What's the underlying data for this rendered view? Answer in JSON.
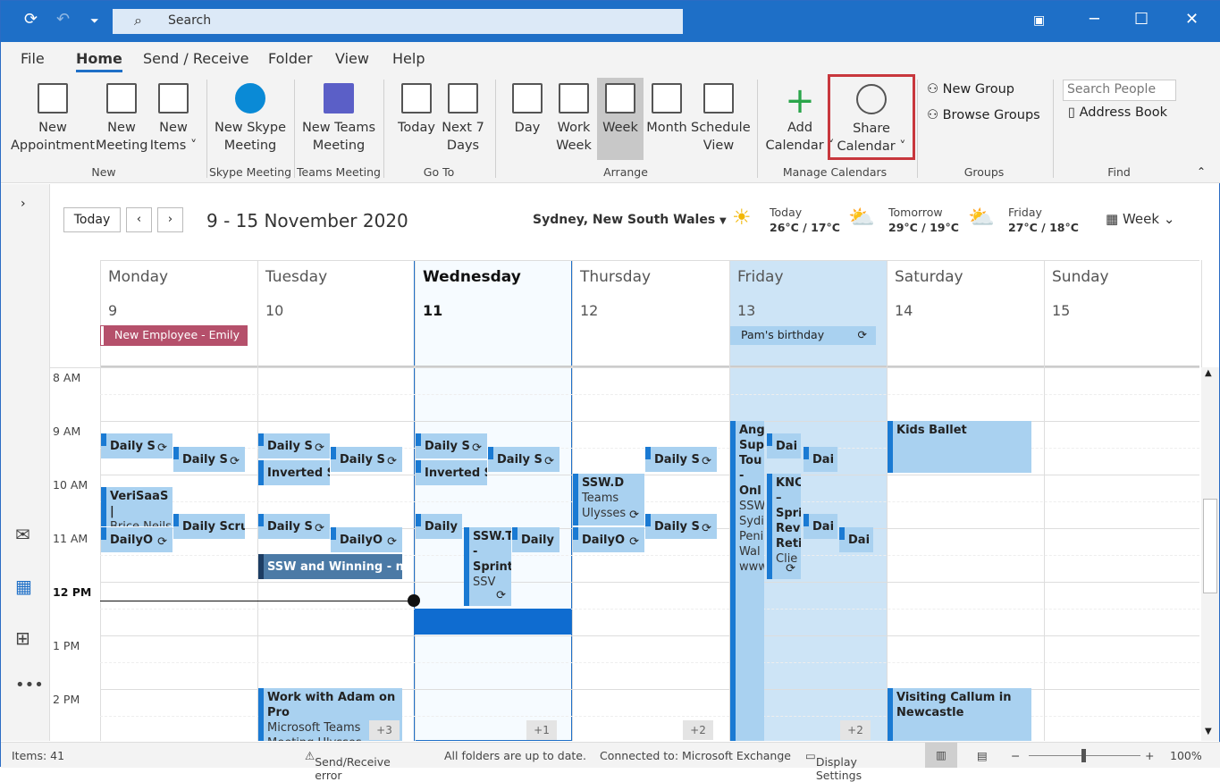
{
  "titlebar": {
    "search_placeholder": "Search"
  },
  "menu_tabs": [
    "File",
    "Home",
    "Send / Receive",
    "Folder",
    "View",
    "Help"
  ],
  "ribbon": {
    "new_group": {
      "label": "New",
      "buttons": [
        [
          "New",
          "Appointment"
        ],
        [
          "New",
          "Meeting"
        ],
        [
          "New",
          "Items ˅"
        ]
      ]
    },
    "skype_group": {
      "label": "Skype Meeting",
      "button": [
        "New Skype",
        "Meeting"
      ]
    },
    "teams_group": {
      "label": "Teams Meeting",
      "button": [
        "New Teams",
        "Meeting"
      ]
    },
    "goto_group": {
      "label": "Go To",
      "buttons": [
        [
          "Today",
          ""
        ],
        [
          "Next 7",
          "Days"
        ]
      ]
    },
    "arrange_group": {
      "label": "Arrange",
      "buttons": [
        [
          "Day",
          ""
        ],
        [
          "Work",
          "Week"
        ],
        [
          "Week",
          ""
        ],
        [
          "Month",
          ""
        ],
        [
          "Schedule",
          "View"
        ]
      ]
    },
    "manage_group": {
      "label": "Manage Calendars",
      "buttons": [
        [
          "Add",
          "Calendar ˅"
        ],
        [
          "Share",
          "Calendar ˅"
        ]
      ]
    },
    "groups_group": {
      "label": "Groups",
      "new_group": "New Group",
      "browse_groups": "Browse Groups"
    },
    "find_group": {
      "label": "Find",
      "search_people_placeholder": "Search People",
      "address_book": "Address Book"
    }
  },
  "calendar": {
    "today_button": "Today",
    "date_range": "9 - 15 November 2020",
    "location": "Sydney, New South Wales",
    "weather": [
      {
        "day": "Today",
        "temp": "26°C / 17°C",
        "icon": "sun"
      },
      {
        "day": "Tomorrow",
        "temp": "29°C / 19°C",
        "icon": "partly-cloudy"
      },
      {
        "day": "Friday",
        "temp": "27°C / 18°C",
        "icon": "partly-sunny"
      }
    ],
    "view_selector": "Week",
    "days": [
      {
        "name": "Monday",
        "date": "9"
      },
      {
        "name": "Tuesday",
        "date": "10"
      },
      {
        "name": "Wednesday",
        "date": "11"
      },
      {
        "name": "Thursday",
        "date": "12"
      },
      {
        "name": "Friday",
        "date": "13"
      },
      {
        "name": "Saturday",
        "date": "14"
      },
      {
        "name": "Sunday",
        "date": "15"
      }
    ],
    "all_day": [
      {
        "day": "Monday",
        "title": "New Employee - Emily ...",
        "color": "#b5506b"
      },
      {
        "day": "Friday",
        "title": "Pam's birthday",
        "color": "#a9d1f0"
      }
    ],
    "hours": [
      "8 AM",
      "9 AM",
      "10 AM",
      "11 AM",
      "12 PM",
      "1 PM",
      "2 PM"
    ],
    "events": [
      {
        "title": "Daily S",
        "sub": "",
        "recurring": true
      },
      {
        "title": "Daily S",
        "sub": "",
        "recurring": true
      },
      {
        "title": "VeriSaaS |",
        "sub": "Brice Neils",
        "recurring": false
      },
      {
        "title": "Daily Scru",
        "sub": "",
        "recurring": false
      },
      {
        "title": "DailyO",
        "sub": "",
        "recurring": true
      },
      {
        "title": "Daily S",
        "sub": "",
        "recurring": true
      },
      {
        "title": "Inverted S",
        "sub": "",
        "recurring": false
      },
      {
        "title": "Daily S",
        "sub": "",
        "recurring": true
      },
      {
        "title": "Daily S",
        "sub": "",
        "recurring": true
      },
      {
        "title": "DailyO",
        "sub": "",
        "recurring": true
      },
      {
        "title": "SSW and Winning - nex",
        "sub": "",
        "recurring": false
      },
      {
        "title": "Daily S",
        "sub": "",
        "recurring": true
      },
      {
        "title": "Inverted S",
        "sub": "",
        "recurring": false
      },
      {
        "title": "Daily S",
        "sub": "",
        "recurring": true
      },
      {
        "title": "Daily",
        "sub": "",
        "recurring": false
      },
      {
        "title": "SSW.T - Sprint",
        "sub": "SSV",
        "recurring": true
      },
      {
        "title": "Daily",
        "sub": "",
        "recurring": false
      },
      {
        "title": "SSW.D",
        "sub": "Teams Ulysses",
        "recurring": true
      },
      {
        "title": "DailyO",
        "sub": "",
        "recurring": true
      },
      {
        "title": "Daily S",
        "sub": "",
        "recurring": true
      },
      {
        "title": "Daily S",
        "sub": "",
        "recurring": true
      },
      {
        "title": "Ang Sup Tou - Onl",
        "sub": "SSW Sydi Peni Wal www",
        "recurring": false
      },
      {
        "title": "Dai",
        "sub": "",
        "recurring": false
      },
      {
        "title": "Dai",
        "sub": "",
        "recurring": false
      },
      {
        "title": "KNC – Spri Rev Reti",
        "sub": "Clie",
        "recurring": true
      },
      {
        "title": "Dai",
        "sub": "",
        "recurring": false
      },
      {
        "title": "Dai",
        "sub": "",
        "recurring": false
      },
      {
        "title": "Kids Ballet",
        "sub": "",
        "recurring": false
      },
      {
        "title": "Work with Adam on Pro",
        "sub": "Microsoft Teams Meeting Ulysses Maclaren w",
        "recurring": false
      },
      {
        "title": "Visiting Callum in Newcastle",
        "sub": "",
        "recurring": false
      }
    ],
    "more_badges": [
      "+3",
      "+1",
      "+2",
      "+2"
    ]
  },
  "status": {
    "items": "Items: 41",
    "send_receive": "Send/Receive error",
    "folders": "All folders are up to date.",
    "connected": "Connected to: Microsoft Exchange",
    "display_settings": "Display Settings",
    "zoom": "100%"
  }
}
